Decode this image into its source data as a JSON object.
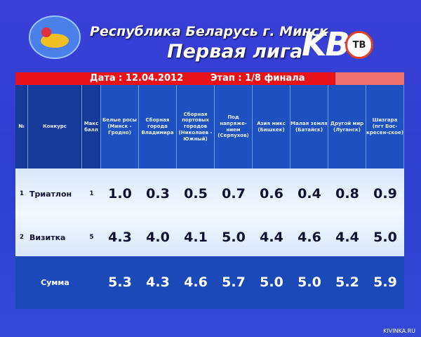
{
  "header": {
    "line1": "Республика Беларусь г. Минск",
    "line2": "Первая лига",
    "brand": "KBH",
    "channel": "ТВ"
  },
  "info": {
    "date": "Дата : 12.04.2012",
    "stage": "Этап : 1/8 финала"
  },
  "columns": {
    "num": "№",
    "contest": "Конкурс",
    "max": "Макс балл",
    "teams": [
      "Белые росы (Минск - Гродно)",
      "Сборная города Владимира",
      "Сборная портовых городов (Николаев - Южный)",
      "Под напряже-нием (Серпухов)",
      "Азия микс (Бишкек)",
      "Малая земля (Батайск)",
      "Другой мир (Луганск)",
      "Шизгара (пгт Вос-кресен-ское)"
    ]
  },
  "rows": [
    {
      "num": "1",
      "contest": "Триатлон",
      "max": "1",
      "scores": [
        "1.0",
        "0.3",
        "0.5",
        "0.7",
        "0.6",
        "0.4",
        "0.8",
        "0.9"
      ]
    },
    {
      "num": "2",
      "contest": "Визитка",
      "max": "5",
      "scores": [
        "4.3",
        "4.0",
        "4.1",
        "5.0",
        "4.4",
        "4.6",
        "4.4",
        "5.0"
      ]
    }
  ],
  "total": {
    "label": "Сумма",
    "scores": [
      "5.3",
      "4.3",
      "4.6",
      "5.7",
      "5.0",
      "5.0",
      "5.2",
      "5.9"
    ]
  },
  "watermark": "KIVINKA.RU"
}
